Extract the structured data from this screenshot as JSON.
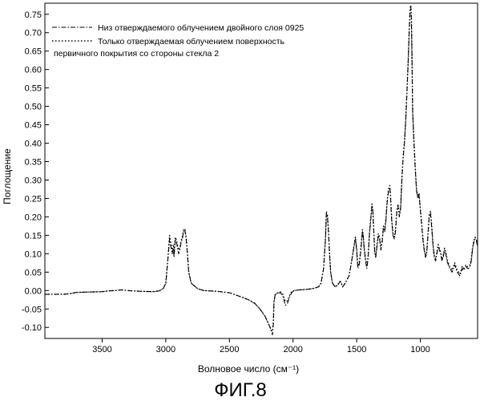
{
  "chart_data": {
    "type": "line",
    "xlabel": "Волновое число (см⁻¹)",
    "ylabel": "Поглощение",
    "xlim": [
      3950,
      550
    ],
    "ylim": [
      -0.13,
      0.78
    ],
    "x_reversed": true,
    "x_ticks": [
      3500,
      3000,
      2500,
      2000,
      1500,
      1000
    ],
    "x_tick_labels": [
      "3500",
      "3000",
      "2500",
      "2000",
      "1500",
      "1000"
    ],
    "y_ticks": [
      -0.1,
      -0.05,
      0.0,
      0.05,
      0.1,
      0.15,
      0.2,
      0.25,
      0.3,
      0.35,
      0.4,
      0.45,
      0.5,
      0.55,
      0.6,
      0.65,
      0.7,
      0.75
    ],
    "y_tick_labels": [
      "-0.10",
      "-0.05",
      "0.00",
      "0.05",
      "0.10",
      "0.15",
      "0.20",
      "0.25",
      "0.30",
      "0.35",
      "0.40",
      "0.45",
      "0.50",
      "0.55",
      "0.60",
      "0.65",
      "0.70",
      "0.75"
    ],
    "legend_position": "top-left",
    "grid": false,
    "series": [
      {
        "name": "Низ отверждаемого облучением двойного слоя 0925",
        "style": "dash-dot",
        "color": "#000000",
        "x": [
          3950,
          3800,
          3750,
          3700,
          3600,
          3500,
          3450,
          3400,
          3350,
          3300,
          3200,
          3100,
          3050,
          3020,
          3000,
          2985,
          2970,
          2960,
          2950,
          2940,
          2935,
          2925,
          2915,
          2900,
          2890,
          2880,
          2870,
          2860,
          2850,
          2840,
          2830,
          2820,
          2800,
          2750,
          2700,
          2600,
          2500,
          2450,
          2400,
          2350,
          2300,
          2260,
          2220,
          2200,
          2180,
          2170,
          2162,
          2155,
          2150,
          2140,
          2120,
          2100,
          2080,
          2060,
          2045,
          2030,
          2010,
          1990,
          1950,
          1900,
          1850,
          1800,
          1780,
          1760,
          1745,
          1738,
          1730,
          1722,
          1715,
          1705,
          1690,
          1670,
          1650,
          1630,
          1620,
          1610,
          1600,
          1590,
          1560,
          1540,
          1520,
          1510,
          1500,
          1495,
          1490,
          1480,
          1470,
          1460,
          1455,
          1450,
          1440,
          1430,
          1420,
          1410,
          1400,
          1390,
          1380,
          1372,
          1365,
          1358,
          1350,
          1340,
          1330,
          1320,
          1310,
          1300,
          1290,
          1280,
          1270,
          1260,
          1250,
          1240,
          1235,
          1225,
          1215,
          1205,
          1195,
          1185,
          1175,
          1165,
          1155,
          1145,
          1135,
          1125,
          1115,
          1105,
          1095,
          1088,
          1080,
          1075,
          1070,
          1065,
          1060,
          1050,
          1040,
          1030,
          1020,
          1010,
          1005,
          1000,
          990,
          980,
          970,
          960,
          950,
          940,
          930,
          920,
          910,
          900,
          890,
          880,
          870,
          860,
          850,
          840,
          830,
          820,
          810,
          800,
          790,
          780,
          770,
          760,
          750,
          740,
          730,
          720,
          710,
          700,
          690,
          680,
          670,
          660,
          650,
          640,
          630,
          620,
          610,
          600,
          590,
          580,
          570,
          560,
          550
        ],
        "y": [
          -0.01,
          -0.01,
          -0.008,
          -0.005,
          -0.004,
          -0.003,
          -0.001,
          0.0,
          0.002,
          0.0,
          -0.002,
          -0.003,
          -0.001,
          0.005,
          0.02,
          0.08,
          0.14,
          0.12,
          0.1,
          0.115,
          0.09,
          0.14,
          0.13,
          0.1,
          0.11,
          0.13,
          0.14,
          0.16,
          0.165,
          0.14,
          0.1,
          0.05,
          0.02,
          0.005,
          0.0,
          -0.002,
          -0.006,
          -0.012,
          -0.018,
          -0.025,
          -0.035,
          -0.05,
          -0.07,
          -0.085,
          -0.1,
          -0.11,
          -0.12,
          -0.09,
          -0.03,
          -0.01,
          -0.008,
          -0.005,
          -0.015,
          -0.04,
          -0.035,
          -0.02,
          -0.005,
          0.0,
          0.002,
          0.003,
          0.005,
          0.01,
          0.02,
          0.06,
          0.14,
          0.21,
          0.2,
          0.16,
          0.11,
          0.05,
          0.02,
          0.01,
          0.015,
          0.025,
          0.02,
          0.01,
          0.015,
          0.02,
          0.04,
          0.08,
          0.12,
          0.14,
          0.11,
          0.08,
          0.06,
          0.07,
          0.1,
          0.14,
          0.16,
          0.15,
          0.11,
          0.08,
          0.06,
          0.09,
          0.15,
          0.19,
          0.23,
          0.21,
          0.15,
          0.1,
          0.09,
          0.12,
          0.15,
          0.14,
          0.11,
          0.13,
          0.17,
          0.16,
          0.19,
          0.24,
          0.27,
          0.28,
          0.26,
          0.19,
          0.15,
          0.14,
          0.16,
          0.21,
          0.23,
          0.2,
          0.22,
          0.3,
          0.36,
          0.4,
          0.46,
          0.54,
          0.62,
          0.7,
          0.76,
          0.77,
          0.74,
          0.62,
          0.48,
          0.4,
          0.33,
          0.27,
          0.25,
          0.26,
          0.24,
          0.22,
          0.18,
          0.14,
          0.11,
          0.09,
          0.1,
          0.15,
          0.2,
          0.21,
          0.17,
          0.12,
          0.09,
          0.08,
          0.1,
          0.12,
          0.11,
          0.1,
          0.08,
          0.09,
          0.11,
          0.1,
          0.08,
          0.07,
          0.06,
          0.055,
          0.05,
          0.06,
          0.07,
          0.06,
          0.05,
          0.045,
          0.04,
          0.05,
          0.06,
          0.055,
          0.06,
          0.065,
          0.06,
          0.06,
          0.065,
          0.08,
          0.11,
          0.13,
          0.14,
          0.135,
          0.12
        ]
      },
      {
        "name": "Только отверждаемая облучением поверхность первичного покрытия со стороны стекла 2",
        "style": "dotted",
        "color": "#000000",
        "x": [
          3950,
          3800,
          3750,
          3700,
          3600,
          3500,
          3450,
          3400,
          3350,
          3300,
          3200,
          3100,
          3050,
          3020,
          3000,
          2985,
          2970,
          2960,
          2950,
          2940,
          2935,
          2925,
          2915,
          2900,
          2890,
          2880,
          2870,
          2860,
          2850,
          2840,
          2830,
          2820,
          2800,
          2750,
          2700,
          2600,
          2500,
          2450,
          2400,
          2350,
          2300,
          2260,
          2220,
          2200,
          2180,
          2170,
          2162,
          2155,
          2150,
          2140,
          2120,
          2100,
          2080,
          2060,
          2045,
          2030,
          2010,
          1990,
          1950,
          1900,
          1850,
          1800,
          1780,
          1760,
          1745,
          1738,
          1730,
          1722,
          1715,
          1705,
          1690,
          1670,
          1650,
          1630,
          1620,
          1610,
          1600,
          1590,
          1560,
          1540,
          1520,
          1510,
          1500,
          1495,
          1490,
          1480,
          1470,
          1460,
          1455,
          1450,
          1440,
          1430,
          1420,
          1410,
          1400,
          1390,
          1380,
          1372,
          1365,
          1358,
          1350,
          1340,
          1330,
          1320,
          1310,
          1300,
          1290,
          1280,
          1270,
          1260,
          1250,
          1240,
          1235,
          1225,
          1215,
          1205,
          1195,
          1185,
          1175,
          1165,
          1155,
          1145,
          1135,
          1125,
          1115,
          1105,
          1095,
          1088,
          1080,
          1075,
          1070,
          1065,
          1060,
          1050,
          1040,
          1030,
          1020,
          1010,
          1005,
          1000,
          990,
          980,
          970,
          960,
          950,
          940,
          930,
          920,
          910,
          900,
          890,
          880,
          870,
          860,
          850,
          840,
          830,
          820,
          810,
          800,
          790,
          780,
          770,
          760,
          750,
          740,
          730,
          720,
          710,
          700,
          690,
          680,
          670,
          660,
          650,
          640,
          630,
          620,
          610,
          600,
          590,
          580,
          570,
          560,
          550
        ],
        "y": [
          -0.01,
          -0.01,
          -0.008,
          -0.005,
          -0.004,
          -0.003,
          -0.001,
          0.0,
          0.002,
          0.0,
          -0.002,
          -0.003,
          -0.001,
          0.006,
          0.02,
          0.08,
          0.15,
          0.13,
          0.11,
          0.125,
          0.1,
          0.145,
          0.135,
          0.11,
          0.115,
          0.135,
          0.145,
          0.165,
          0.168,
          0.145,
          0.1,
          0.05,
          0.02,
          0.005,
          0.0,
          -0.002,
          -0.006,
          -0.012,
          -0.018,
          -0.025,
          -0.035,
          -0.05,
          -0.07,
          -0.085,
          -0.1,
          -0.11,
          -0.11,
          -0.085,
          -0.03,
          -0.01,
          -0.006,
          -0.003,
          -0.01,
          -0.03,
          -0.028,
          -0.015,
          -0.002,
          0.0,
          0.002,
          0.003,
          0.005,
          0.01,
          0.02,
          0.06,
          0.145,
          0.215,
          0.205,
          0.165,
          0.11,
          0.05,
          0.02,
          0.01,
          0.015,
          0.025,
          0.02,
          0.01,
          0.015,
          0.02,
          0.04,
          0.08,
          0.125,
          0.145,
          0.115,
          0.085,
          0.065,
          0.075,
          0.105,
          0.145,
          0.165,
          0.155,
          0.115,
          0.085,
          0.065,
          0.095,
          0.155,
          0.195,
          0.235,
          0.215,
          0.155,
          0.105,
          0.095,
          0.125,
          0.155,
          0.145,
          0.115,
          0.135,
          0.175,
          0.165,
          0.195,
          0.245,
          0.275,
          0.285,
          0.265,
          0.195,
          0.155,
          0.145,
          0.165,
          0.215,
          0.235,
          0.205,
          0.225,
          0.305,
          0.365,
          0.405,
          0.465,
          0.545,
          0.625,
          0.705,
          0.765,
          0.775,
          0.745,
          0.625,
          0.485,
          0.405,
          0.335,
          0.275,
          0.255,
          0.265,
          0.245,
          0.225,
          0.185,
          0.145,
          0.115,
          0.095,
          0.105,
          0.155,
          0.205,
          0.215,
          0.175,
          0.125,
          0.095,
          0.085,
          0.105,
          0.125,
          0.115,
          0.105,
          0.085,
          0.095,
          0.115,
          0.105,
          0.085,
          0.075,
          0.065,
          0.06,
          0.055,
          0.065,
          0.075,
          0.065,
          0.055,
          0.05,
          0.045,
          0.055,
          0.065,
          0.06,
          0.065,
          0.07,
          0.065,
          0.065,
          0.07,
          0.085,
          0.115,
          0.135,
          0.145,
          0.14,
          0.125
        ]
      }
    ]
  },
  "caption": "ФИГ.8"
}
